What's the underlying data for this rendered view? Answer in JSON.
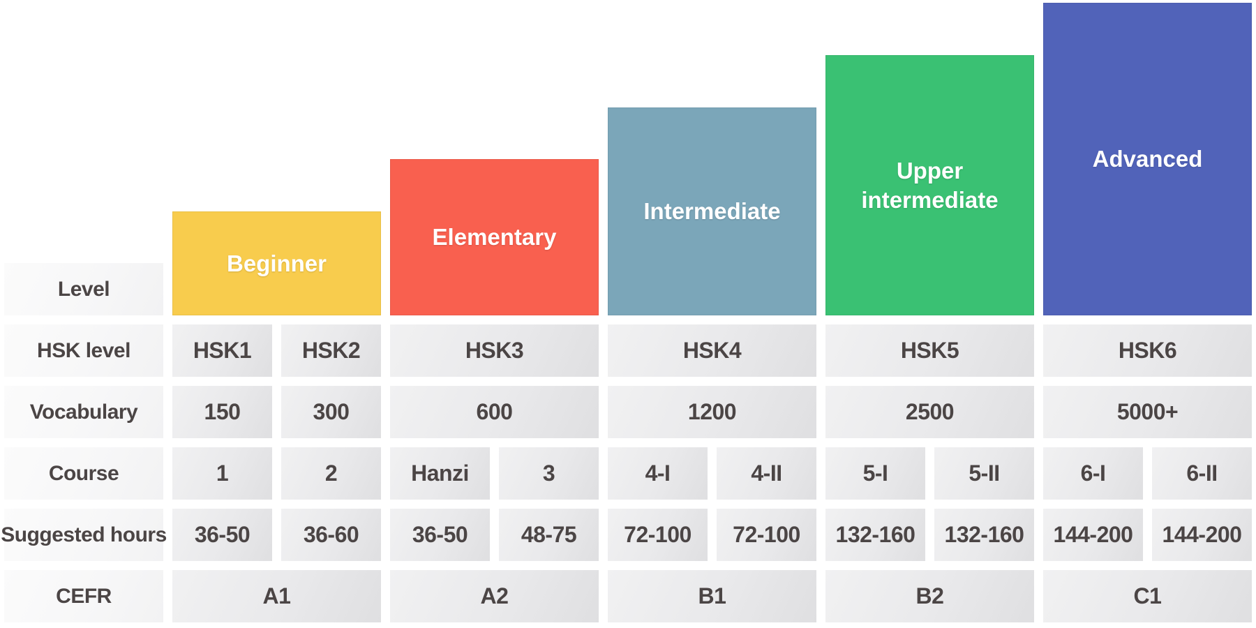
{
  "colors": {
    "beginner": "#F8CC4D",
    "elementary": "#F9604F",
    "intermediate": "#7BA6B9",
    "upper_intermediate": "#3AC173",
    "advanced": "#5163B9",
    "bar_text": "#FFFFFF",
    "table_text": "#4B4545",
    "data_cell_bg": "#E8E8EA",
    "label_cell_bg": "#F7F7F8"
  },
  "chart_data": {
    "type": "table",
    "title": "",
    "description": "HSK Chinese proficiency levels staircase infographic: five level bars of increasing height over a table of HSK details",
    "row_labels": [
      "Level",
      "HSK level",
      "Vocabulary",
      "Course",
      "Suggested hours",
      "CEFR"
    ],
    "stair_units": [
      1,
      2,
      3,
      4,
      5
    ],
    "groups": [
      {
        "level": "Beginner",
        "color": "#F8CC4D",
        "hsk": [
          "HSK1",
          "HSK2"
        ],
        "vocabulary": [
          "150",
          "300"
        ],
        "courses": [
          "1",
          "2"
        ],
        "hours": [
          "36-50",
          "36-60"
        ],
        "cefr": "A1"
      },
      {
        "level": "Elementary",
        "color": "#F9604F",
        "hsk": [
          "HSK3"
        ],
        "vocabulary": [
          "600"
        ],
        "courses": [
          "Hanzi",
          "3"
        ],
        "hours": [
          "36-50",
          "48-75"
        ],
        "cefr": "A2"
      },
      {
        "level": "Intermediate",
        "color": "#7BA6B9",
        "hsk": [
          "HSK4"
        ],
        "vocabulary": [
          "1200"
        ],
        "courses": [
          "4-I",
          "4-II"
        ],
        "hours": [
          "72-100",
          "72-100"
        ],
        "cefr": "B1"
      },
      {
        "level": "Upper intermediate",
        "color": "#3AC173",
        "hsk": [
          "HSK5"
        ],
        "vocabulary": [
          "2500"
        ],
        "courses": [
          "5-I",
          "5-II"
        ],
        "hours": [
          "132-160",
          "132-160"
        ],
        "cefr": "B2"
      },
      {
        "level": "Advanced",
        "color": "#5163B9",
        "hsk": [
          "HSK6"
        ],
        "vocabulary": [
          "5000+"
        ],
        "courses": [
          "6-I",
          "6-II"
        ],
        "hours": [
          "144-200",
          "144-200"
        ],
        "cefr": "C1"
      }
    ]
  }
}
